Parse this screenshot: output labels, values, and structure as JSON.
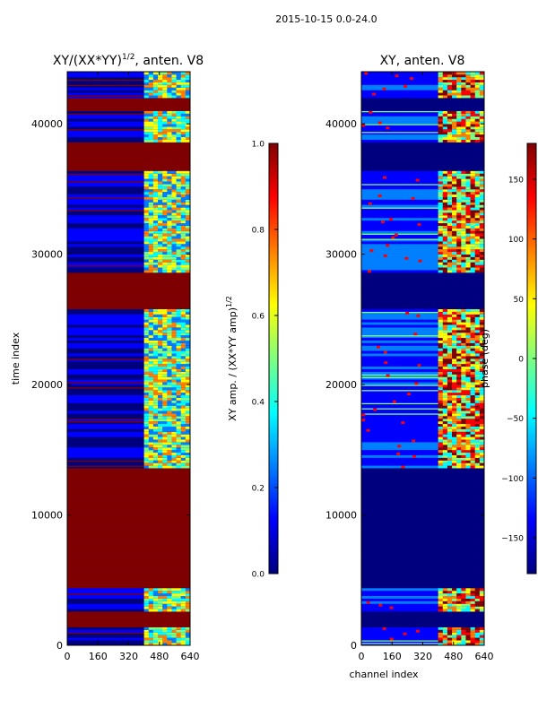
{
  "suptitle": "2015-10-15 0.0-24.0",
  "colors": {
    "jet": [
      "#00007f",
      "#0000ff",
      "#007fff",
      "#00ffff",
      "#7fff7f",
      "#ffff00",
      "#ff7f00",
      "#ff0000",
      "#7f0000"
    ]
  },
  "chart_data": [
    {
      "type": "heatmap",
      "title_main": "XY/(XX*YY)",
      "title_sup": "1/2",
      "title_rest": ", anten. V8",
      "xlabel": "",
      "ylabel": "time index",
      "xlim": [
        0,
        640
      ],
      "ylim": [
        0,
        44000
      ],
      "xticks": [
        0,
        160,
        320,
        480,
        640
      ],
      "yticks": [
        0,
        10000,
        20000,
        30000,
        40000
      ],
      "colorbar": {
        "label_main": "XY amp. / (XX*YY amp)",
        "label_sup": "1/2",
        "range": [
          0.0,
          1.0
        ],
        "ticks": [
          "0.0",
          "0.2",
          "0.4",
          "0.6",
          "0.8",
          "1.0"
        ],
        "tick_values": [
          0.0,
          0.2,
          0.4,
          0.6,
          0.8,
          1.0
        ]
      },
      "saturated_blocks": [
        [
          1400,
          2600
        ],
        [
          4500,
          13500
        ],
        [
          25800,
          28500
        ],
        [
          36500,
          38500
        ],
        [
          41000,
          42000
        ]
      ],
      "active_channels": [
        400,
        640
      ]
    },
    {
      "type": "heatmap",
      "title": "XY, anten. V8",
      "xlabel": "channel index",
      "ylabel": "",
      "xlim": [
        0,
        640
      ],
      "ylim": [
        0,
        44000
      ],
      "xticks": [
        0,
        160,
        320,
        480,
        640
      ],
      "yticks": [
        0,
        10000,
        20000,
        30000,
        40000
      ],
      "colorbar": {
        "label": "phase (deg)",
        "range": [
          -180,
          180
        ],
        "ticks": [
          "−150",
          "−100",
          "−50",
          "0",
          "50",
          "100",
          "150"
        ],
        "tick_values": [
          -150,
          -100,
          -50,
          0,
          50,
          100,
          150
        ]
      },
      "lowphase_blocks": [
        [
          1400,
          2600
        ],
        [
          4500,
          13500
        ],
        [
          25800,
          28500
        ],
        [
          36500,
          38500
        ],
        [
          41000,
          42000
        ]
      ],
      "active_channels": [
        400,
        640
      ]
    }
  ]
}
